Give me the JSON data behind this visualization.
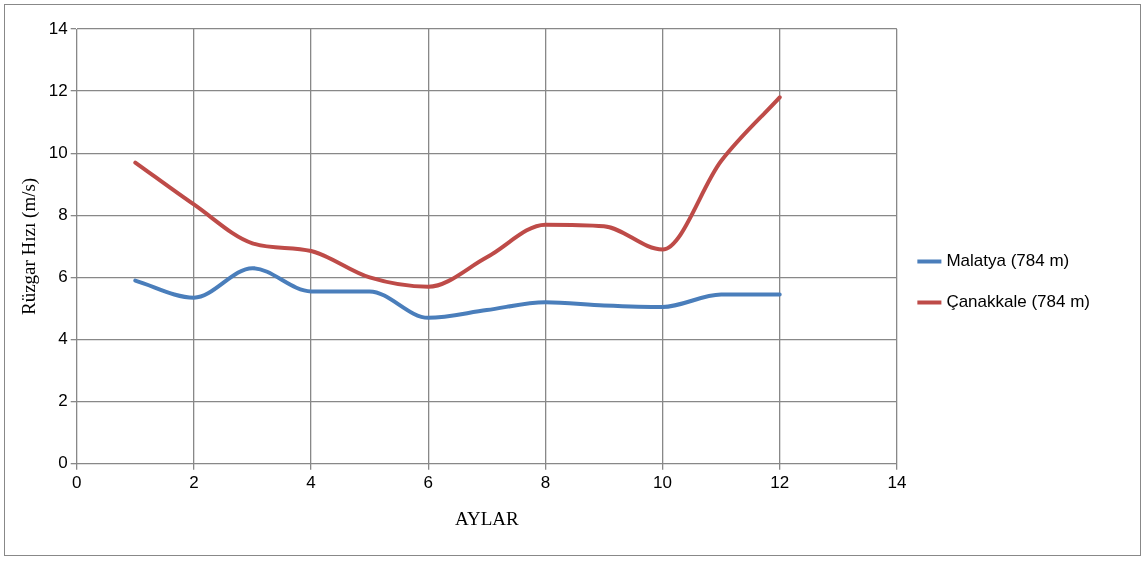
{
  "chart_data": {
    "type": "line",
    "xlabel": "AYLAR",
    "ylabel": "Rüzgar Hızı (m/s)",
    "x": [
      1,
      2,
      3,
      4,
      5,
      6,
      7,
      8,
      9,
      10,
      11,
      12
    ],
    "series": [
      {
        "name": "Malatya (784 m)",
        "color": "#4a7ebb",
        "values": [
          5.9,
          5.35,
          6.3,
          5.55,
          5.55,
          4.7,
          4.95,
          5.2,
          5.1,
          5.05,
          5.45,
          5.45
        ]
      },
      {
        "name": "Çanakkale (784 m)",
        "color": "#be4b48",
        "values": [
          9.7,
          8.35,
          7.1,
          6.85,
          6.0,
          5.7,
          6.65,
          7.7,
          7.65,
          6.9,
          9.75,
          11.8
        ]
      }
    ],
    "xlim": [
      0,
      14
    ],
    "xticks": [
      0,
      2,
      4,
      6,
      8,
      10,
      12,
      14
    ],
    "ylim": [
      0,
      14
    ],
    "yticks": [
      0,
      2,
      4,
      6,
      8,
      10,
      12,
      14
    ],
    "grid": true,
    "legend": "right",
    "marker": "none",
    "line_style": "solid"
  }
}
